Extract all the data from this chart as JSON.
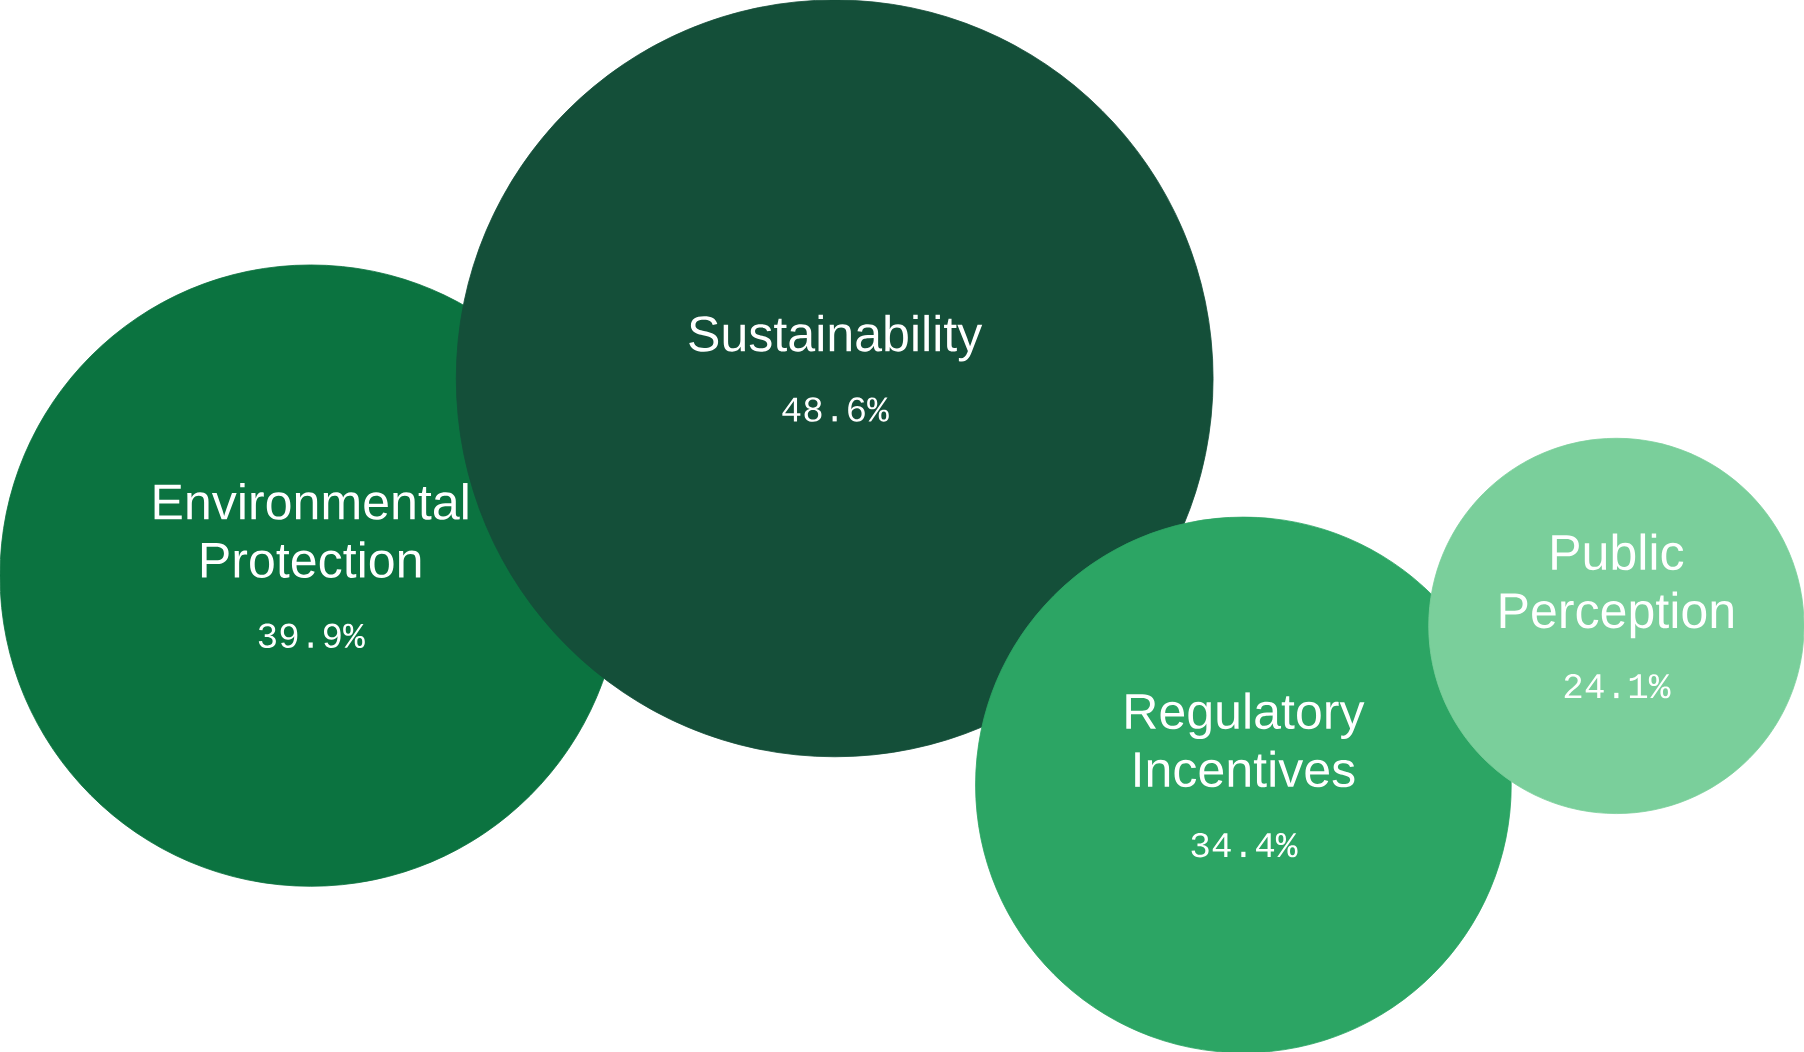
{
  "chart_data": {
    "type": "other",
    "categories": [
      "Environmental Protection",
      "Sustainability",
      "Regulatory Incentives",
      "Public Perception"
    ],
    "values": [
      39.9,
      48.6,
      34.4,
      24.1
    ],
    "value_labels": [
      "39.9%",
      "48.6%",
      "34.4%",
      "24.1%"
    ],
    "colors": [
      "#0b7340",
      "#144f39",
      "#2ca564",
      "#7acf9b"
    ]
  }
}
